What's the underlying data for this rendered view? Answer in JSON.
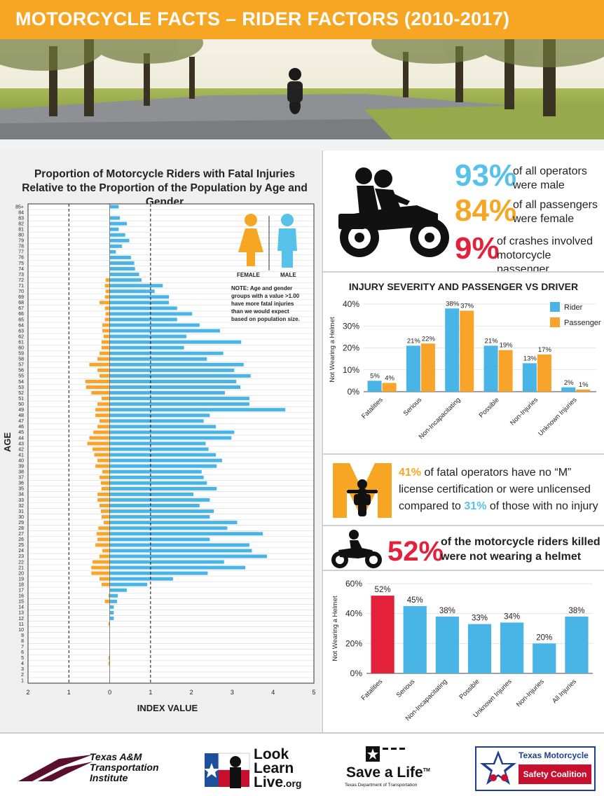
{
  "header": {
    "title": "MOTORCYCLE FACTS – RIDER FACTORS (2010-2017)"
  },
  "colors": {
    "orange": "#f6a623",
    "blue": "#56c2ea",
    "red": "#e3213a",
    "rider": "#49b4e6",
    "passenger": "#f8a32a"
  },
  "stats": {
    "male": {
      "pct": "93%",
      "line1": "of all operators",
      "line2": "were male"
    },
    "female": {
      "pct": "84%",
      "line1": "of all passengers",
      "line2": "were female"
    },
    "passenger": {
      "pct": "9%",
      "line1": "of crashes involved",
      "line2": "motorcycle passenger"
    },
    "license": {
      "pct1": "41%",
      "text1": " of fatal operators have no “M”",
      "line2": "license certification or were unlicensed",
      "text3": "compared to ",
      "pct2": "31%",
      "text4": " of those with no injury"
    },
    "helmet": {
      "pct": "52%",
      "line1": "of the motorcycle riders killed",
      "line2": "were not wearing a helmet"
    }
  },
  "legend_gender": {
    "female": "FEMALE",
    "male": "MALE",
    "note": [
      "NOTE: Age and gender",
      "groups with a value >1.00",
      "have more fatal injuries",
      "than we would expect",
      "based on population size."
    ]
  },
  "chart_data": [
    {
      "type": "bar",
      "orientation": "horizontal",
      "title": "Proportion of Motorcycle Riders with Fatal Injuries Relative to the Proportion of the Population by Age and Gender",
      "xlabel": "INDEX VALUE",
      "ylabel": "AGE",
      "xticks": [
        "2",
        "1",
        "0",
        "1",
        "2",
        "3",
        "4",
        "5"
      ],
      "xlim": [
        -2,
        5
      ],
      "reference_lines": [
        -1,
        1
      ],
      "categories": [
        "1",
        "2",
        "3",
        "4",
        "5",
        "6",
        "7",
        "8",
        "9",
        "10",
        "11",
        "12",
        "13",
        "14",
        "15",
        "16",
        "17",
        "18",
        "19",
        "20",
        "21",
        "22",
        "23",
        "24",
        "25",
        "26",
        "27",
        "28",
        "29",
        "30",
        "31",
        "32",
        "33",
        "34",
        "35",
        "36",
        "37",
        "38",
        "39",
        "40",
        "41",
        "42",
        "43",
        "44",
        "45",
        "46",
        "47",
        "48",
        "49",
        "50",
        "51",
        "52",
        "53",
        "54",
        "55",
        "56",
        "57",
        "58",
        "59",
        "60",
        "61",
        "62",
        "63",
        "64",
        "65",
        "66",
        "67",
        "68",
        "69",
        "70",
        "71",
        "72",
        "73",
        "74",
        "75",
        "76",
        "77",
        "78",
        "79",
        "80",
        "81",
        "82",
        "83",
        "84",
        "85+"
      ],
      "series": [
        {
          "name": "FEMALE",
          "values": [
            0,
            0,
            0,
            0.03,
            0.03,
            0,
            0,
            0,
            0,
            0,
            0.03,
            0,
            0,
            0,
            0.12,
            0.03,
            0,
            0.2,
            0.25,
            0.45,
            0.45,
            0.42,
            0.25,
            0.18,
            0.35,
            0.3,
            0.32,
            0.28,
            0.15,
            0.2,
            0.22,
            0.25,
            0.3,
            0.3,
            0.2,
            0.22,
            0.25,
            0.18,
            0.35,
            0.3,
            0.38,
            0.42,
            0.55,
            0.5,
            0.4,
            0.3,
            0.25,
            0.35,
            0.35,
            0.3,
            0.2,
            0.45,
            0.58,
            0.6,
            0.25,
            0.3,
            0.5,
            0.3,
            0.25,
            0.2,
            0.2,
            0.15,
            0.18,
            0.18,
            0.12,
            0.1,
            0.12,
            0.25,
            0.12,
            0.1,
            0.12,
            0.1,
            0,
            0,
            0,
            0,
            0,
            0,
            0,
            0,
            0,
            0,
            0,
            0,
            0
          ]
        },
        {
          "name": "MALE",
          "values": [
            0,
            0,
            0,
            0,
            0,
            0,
            0,
            0,
            0,
            0,
            0,
            0.1,
            0.1,
            0.1,
            0.18,
            0.2,
            0.42,
            0.92,
            1.55,
            2.4,
            3.32,
            2.8,
            3.85,
            3.48,
            3.42,
            2.45,
            3.75,
            2.88,
            3.12,
            2.45,
            2.55,
            2.2,
            2.45,
            2.05,
            2.62,
            2.38,
            2.3,
            2.25,
            2.62,
            2.75,
            2.6,
            2.42,
            2.35,
            2.98,
            3.05,
            2.6,
            2.3,
            2.45,
            4.3,
            3.42,
            3.42,
            2.82,
            3.2,
            3.1,
            3.45,
            3.05,
            3.28,
            2.38,
            2.78,
            1.82,
            3.22,
            1.88,
            2.7,
            2.2,
            1.65,
            2.02,
            1.65,
            1.45,
            1.45,
            1.1,
            1.3,
            0.78,
            0.72,
            0.62,
            0.6,
            0.52,
            0.15,
            0.3,
            0.48,
            0.38,
            0.22,
            0.42,
            0.25,
            0,
            0.22
          ]
        }
      ]
    },
    {
      "type": "bar",
      "title": "INJURY SEVERITY AND PASSENGER VS DRIVER",
      "ylabel": "Not Wearing a Helmet",
      "ylim": [
        0,
        40
      ],
      "yticks": [
        "0%",
        "10%",
        "20%",
        "30%",
        "40%"
      ],
      "categories": [
        "Fatalities",
        "Serious",
        "Non-Incapacitating",
        "Possible",
        "Non-Injuries",
        "Unknown Injuries"
      ],
      "series": [
        {
          "name": "Rider",
          "values": [
            5,
            21,
            38,
            21,
            13,
            2
          ],
          "labels": [
            "5%",
            "21%",
            "38%",
            "21%",
            "13%",
            "2%"
          ]
        },
        {
          "name": "Passenger",
          "values": [
            4,
            22,
            37,
            19,
            17,
            1
          ],
          "labels": [
            "4%",
            "22%",
            "37%",
            "19%",
            "17%",
            "1%"
          ]
        }
      ]
    },
    {
      "type": "bar",
      "ylabel": "Not Wearing a Helmet",
      "ylim": [
        0,
        60
      ],
      "yticks": [
        "0%",
        "20%",
        "40%",
        "60%"
      ],
      "categories": [
        "Fatalities",
        "Serious",
        "Non-Incapacitating",
        "Possible",
        "Unknown Injuries",
        "Non-Injuries",
        "All Injuries"
      ],
      "values": [
        52,
        45,
        38,
        33,
        34,
        20,
        38
      ],
      "labels": [
        "52%",
        "45%",
        "38%",
        "33%",
        "34%",
        "20%",
        "38%"
      ]
    }
  ],
  "footer": {
    "tti": [
      "Texas A&M",
      "Transportation",
      "Institute"
    ],
    "lll": [
      "Look",
      "Learn",
      "Live",
      ".org"
    ],
    "sal": {
      "main": "Save a Life",
      "tm": "TM",
      "sub": "Texas Department of Transportation"
    },
    "tmsc": {
      "line1": "Texas Motorcycle",
      "line2": "Safety Coalition"
    }
  }
}
